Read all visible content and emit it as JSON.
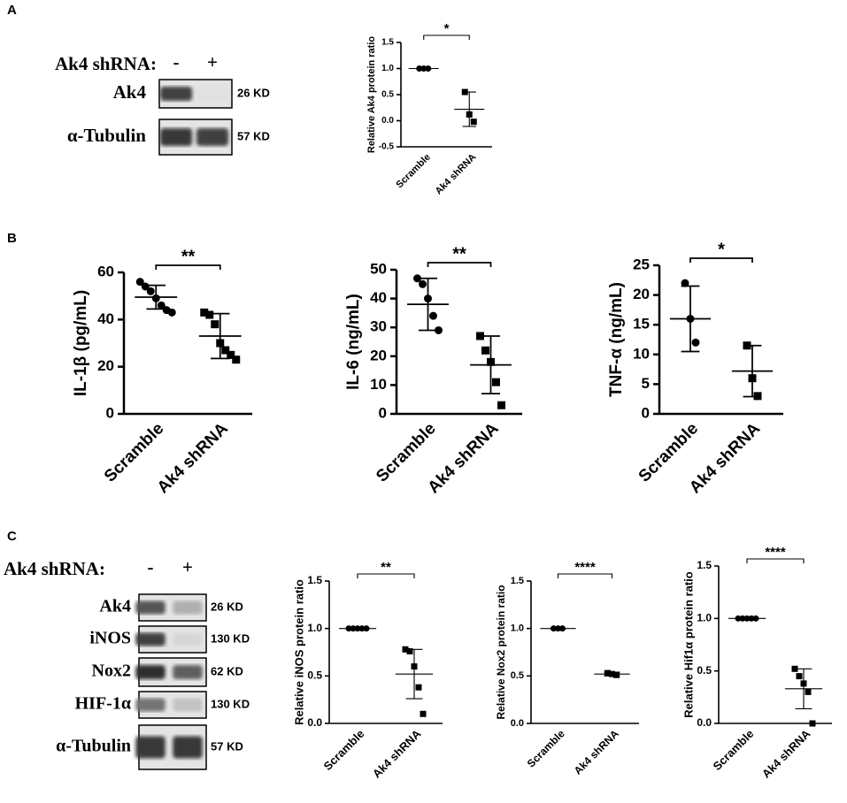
{
  "panel_labels": [
    "A",
    "B",
    "C"
  ],
  "blots": [
    {
      "header": "Ak4 shRNA:",
      "lanes": [
        "-",
        "+"
      ],
      "rows": [
        {
          "name": "Ak4",
          "size": "26 KD"
        },
        {
          "name": "α-Tubulin",
          "size": "57 KD"
        }
      ]
    },
    {
      "header": "Ak4 shRNA:",
      "lanes": [
        "-",
        "+"
      ],
      "rows": [
        {
          "name": "Ak4",
          "size": "26 KD"
        },
        {
          "name": "iNOS",
          "size": "130 KD"
        },
        {
          "name": "Nox2",
          "size": "62 KD"
        },
        {
          "name": "HIF-1α",
          "size": "130 KD"
        },
        {
          "name": "α-Tubulin",
          "size": "57 KD"
        }
      ]
    }
  ],
  "chart_data": [
    {
      "type": "dotplot",
      "ylabel": "Relative Ak4 protein ratio",
      "categories": [
        "Scramble",
        "Ak4 shRNA"
      ],
      "values": [
        [
          1,
          1,
          1
        ],
        [
          0.55,
          0.12,
          -0.02
        ]
      ],
      "means": [
        1,
        0.22
      ],
      "errors": [
        0,
        0.33
      ],
      "ylim": [
        -0.5,
        1.5
      ],
      "yticks": [
        -0.5,
        {
          "value": 0,
          "label": "0.0"
        },
        0.5,
        {
          "value": 1,
          "label": "1.0"
        },
        1.5
      ],
      "significance": "*"
    },
    {
      "type": "dotplot",
      "ylabel": "IL-1β (pg/mL)",
      "categories": [
        "Scramble",
        "Ak4 shRNA"
      ],
      "values": [
        [
          56,
          54,
          52,
          49,
          46,
          44,
          43
        ],
        [
          43,
          42,
          38,
          30,
          27,
          25,
          23
        ]
      ],
      "means": [
        49.5,
        33
      ],
      "errors": [
        5,
        9.5
      ],
      "ylim": [
        0,
        60
      ],
      "yticks": [
        0,
        20,
        40,
        60
      ],
      "significance": "**"
    },
    {
      "type": "dotplot",
      "ylabel": "IL-6 (ng/mL)",
      "categories": [
        "Scramble",
        "Ak4 shRNA"
      ],
      "values": [
        [
          47,
          45,
          40,
          34,
          29
        ],
        [
          27,
          22,
          18,
          11,
          3
        ]
      ],
      "means": [
        38,
        17
      ],
      "errors": [
        9,
        10
      ],
      "ylim": [
        0,
        50
      ],
      "yticks": [
        0,
        10,
        20,
        30,
        40,
        50
      ],
      "significance": "**"
    },
    {
      "type": "dotplot",
      "ylabel": "TNF-α (ng/mL)",
      "categories": [
        "Scramble",
        "Ak4 shRNA"
      ],
      "values": [
        [
          22,
          16,
          12
        ],
        [
          11.5,
          6,
          3
        ]
      ],
      "means": [
        16,
        7.2
      ],
      "errors": [
        5.5,
        4.3
      ],
      "ylim": [
        0,
        25
      ],
      "yticks": [
        0,
        5,
        10,
        15,
        20,
        25
      ],
      "significance": "*"
    },
    {
      "type": "dotplot",
      "ylabel": "Relative iNOS protein ratio",
      "categories": [
        "Scramble",
        "Ak4 shRNA"
      ],
      "values": [
        [
          1,
          1,
          1,
          1,
          1
        ],
        [
          0.78,
          0.76,
          0.6,
          0.38,
          0.1
        ]
      ],
      "means": [
        1,
        0.52
      ],
      "errors": [
        0,
        0.26
      ],
      "ylim": [
        0,
        1.5
      ],
      "yticks": [
        {
          "value": 0,
          "label": "0.0"
        },
        0.5,
        {
          "value": 1,
          "label": "1.0"
        },
        1.5
      ],
      "significance": "**"
    },
    {
      "type": "dotplot",
      "ylabel": "Relative Nox2 protein ratio",
      "categories": [
        "Scramble",
        "Ak4 shRNA"
      ],
      "values": [
        [
          1,
          1,
          1
        ],
        [
          0.53,
          0.52,
          0.51
        ]
      ],
      "means": [
        1,
        0.52
      ],
      "errors": [
        0,
        0.02
      ],
      "ylim": [
        0,
        1.5
      ],
      "yticks": [
        {
          "value": 0,
          "label": "0.0"
        },
        0.5,
        {
          "value": 1,
          "label": "1.0"
        },
        1.5
      ],
      "significance": "****"
    },
    {
      "type": "dotplot",
      "ylabel": "Relative Hif1α protein ratio",
      "categories": [
        "Scramble",
        "Ak4 shRNA"
      ],
      "values": [
        [
          1,
          1,
          1,
          1,
          1
        ],
        [
          0.52,
          0.45,
          0.38,
          0.3,
          0
        ]
      ],
      "means": [
        1,
        0.33
      ],
      "errors": [
        0,
        0.19
      ],
      "ylim": [
        0,
        1.5
      ],
      "yticks": [
        {
          "value": 0,
          "label": "0.0"
        },
        0.5,
        {
          "value": 1,
          "label": "1.0"
        },
        1.5
      ],
      "significance": "****"
    }
  ]
}
